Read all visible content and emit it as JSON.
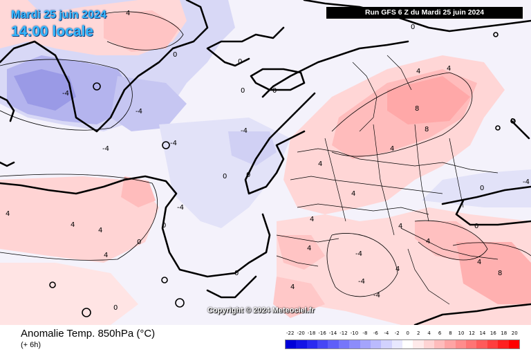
{
  "header": {
    "date": "Mardi 25 juin 2024",
    "local_time": "14:00 locale",
    "run": "Run GFS 6 Z du Mardi 25 juin 2024"
  },
  "copyright": "Copyright © 2024 Meteociel.fr",
  "legend": {
    "title": "Anomalie Temp. 850hPa (°C)",
    "subtitle": "(+ 6h)",
    "scale": [
      "-22",
      "-20",
      "-18",
      "-16",
      "-14",
      "-12",
      "-10",
      "-8",
      "-6",
      "-4",
      "-2",
      "0",
      "2",
      "4",
      "6",
      "8",
      "10",
      "12",
      "14",
      "16",
      "18",
      "20"
    ],
    "colors": [
      "#0000d8",
      "#1414e6",
      "#2a2af0",
      "#4646f5",
      "#5e5ef8",
      "#7676fa",
      "#8c8cfb",
      "#a4a4fc",
      "#babafd",
      "#d2d2fe",
      "#e8e8ff",
      "#ffffff",
      "#ffeaea",
      "#ffd4d4",
      "#ffbcbc",
      "#ffa4a4",
      "#ff8c8c",
      "#ff7474",
      "#ff5a5a",
      "#ff3e3e",
      "#ff2020",
      "#ff0000"
    ]
  },
  "map_labels": [
    "-4",
    "-4",
    "-4",
    "-4",
    "-4",
    "-4",
    "-4",
    "-4",
    "-4",
    "-4",
    "0",
    "0",
    "0",
    "0",
    "0",
    "0",
    "0",
    "0",
    "0",
    "0",
    "0",
    "0",
    "0",
    "0",
    "4",
    "4",
    "4",
    "4",
    "4",
    "4",
    "4",
    "4",
    "4",
    "4",
    "4",
    "4",
    "4",
    "4",
    "4",
    "4",
    "4",
    "8",
    "8",
    "8"
  ]
}
